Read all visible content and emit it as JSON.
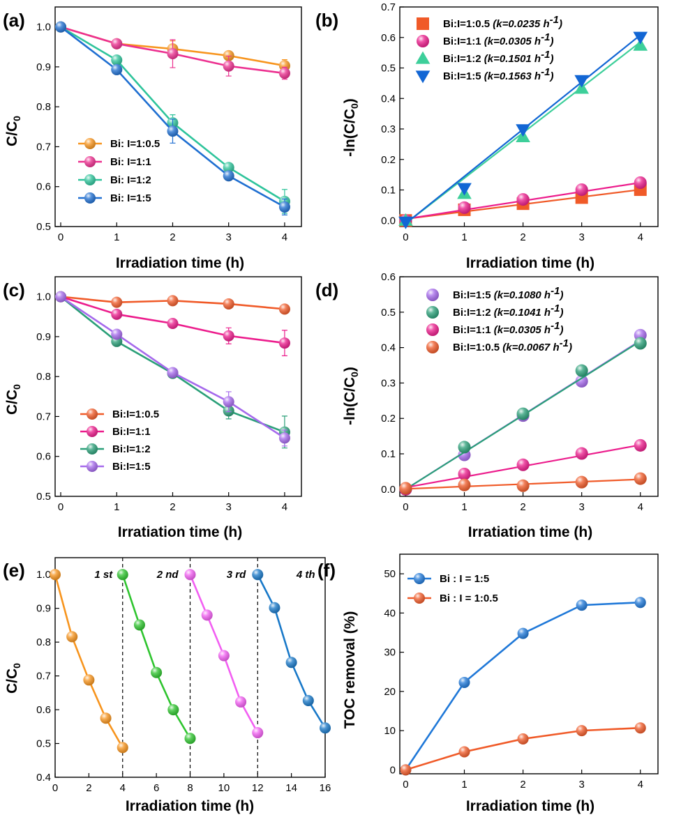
{
  "chart_data": [
    {
      "id": "a",
      "panel_label": "(a)",
      "type": "line",
      "xlabel": "Irradiation time (h)",
      "ylabel": "C/C0",
      "xlim": [
        -0.1,
        4.3
      ],
      "ylim": [
        0.5,
        1.05
      ],
      "xticks": [
        "0",
        "1",
        "2",
        "3",
        "4"
      ],
      "yticks": [
        "0.5",
        "0.6",
        "0.7",
        "0.8",
        "0.9",
        "1.0"
      ],
      "legend_position": "bottom-left",
      "series": [
        {
          "name": "Bi: I=1:0.5",
          "color": "#f7941d",
          "marker": "circle",
          "x": [
            0,
            1,
            2,
            3,
            4
          ],
          "y": [
            1.0,
            0.958,
            0.945,
            0.928,
            0.903
          ],
          "err": [
            0,
            0.01,
            0.02,
            0.01,
            0.015
          ]
        },
        {
          "name": "Bi: I=1:1",
          "color": "#ec2f8f",
          "marker": "circle",
          "x": [
            0,
            1,
            2,
            3,
            4
          ],
          "y": [
            1.0,
            0.958,
            0.933,
            0.902,
            0.884
          ],
          "err": [
            0,
            0.01,
            0.035,
            0.025,
            0.015
          ]
        },
        {
          "name": "Bi: I=1:2",
          "color": "#2ec49b",
          "marker": "circle",
          "x": [
            0,
            1,
            2,
            3,
            4
          ],
          "y": [
            1.0,
            0.917,
            0.76,
            0.648,
            0.563
          ],
          "err": [
            0,
            0.01,
            0.02,
            0.01,
            0.03
          ]
        },
        {
          "name": "Bi: I=1:5",
          "color": "#1f6fd1",
          "marker": "circle",
          "x": [
            0,
            1,
            2,
            3,
            4
          ],
          "y": [
            1.0,
            0.893,
            0.739,
            0.627,
            0.549
          ],
          "err": [
            0,
            0.01,
            0.03,
            0.01,
            0.02
          ]
        }
      ]
    },
    {
      "id": "b",
      "panel_label": "(b)",
      "type": "scatter",
      "xlabel": "Irradiation time (h)",
      "ylabel": "-ln(C/C0)",
      "xlim": [
        -0.1,
        4.3
      ],
      "ylim": [
        -0.02,
        0.7
      ],
      "xticks": [
        "0",
        "1",
        "2",
        "3",
        "4"
      ],
      "yticks": [
        "0.0",
        "0.1",
        "0.2",
        "0.3",
        "0.4",
        "0.5",
        "0.6",
        "0.7"
      ],
      "legend_position": "top-left",
      "series": [
        {
          "name": "Bi:I=1:0.5",
          "k": "(k=0.0235 h",
          "k_sup": "-1",
          "k_close": ")",
          "color": "#f05a28",
          "marker": "square",
          "x": [
            0,
            1,
            2,
            3,
            4
          ],
          "y": [
            0,
            0.035,
            0.055,
            0.075,
            0.101
          ],
          "fit": [
            0.005,
            0.101
          ]
        },
        {
          "name": "Bi:I=1:1",
          "k": "(k=0.0305 h",
          "k_sup": "-1",
          "k_close": ")",
          "color": "#ec1c8c",
          "marker": "circle",
          "x": [
            0,
            1,
            2,
            3,
            4
          ],
          "y": [
            0,
            0.042,
            0.069,
            0.101,
            0.124
          ],
          "fit": [
            0.005,
            0.124
          ]
        },
        {
          "name": "Bi:I=1:2",
          "k": "(k=0.1501 h",
          "k_sup": "-1",
          "k_close": ")",
          "color": "#3dcf9a",
          "marker": "triangle-up",
          "x": [
            0,
            1,
            2,
            3,
            4
          ],
          "y": [
            0,
            0.088,
            0.274,
            0.433,
            0.574
          ],
          "fit": [
            -0.01,
            0.585
          ]
        },
        {
          "name": "Bi:I=1:5",
          "k": "(k=0.1563 h",
          "k_sup": "-1",
          "k_close": ")",
          "color": "#1266d4",
          "marker": "triangle-down",
          "x": [
            0,
            1,
            2,
            3,
            4
          ],
          "y": [
            -0.005,
            0.105,
            0.298,
            0.459,
            0.601
          ],
          "fit": [
            -0.01,
            0.608
          ]
        }
      ]
    },
    {
      "id": "c",
      "panel_label": "(c)",
      "type": "line",
      "xlabel": "Irratiation time (h)",
      "ylabel": "C/C0",
      "xlim": [
        -0.1,
        4.3
      ],
      "ylim": [
        0.5,
        1.05
      ],
      "xticks": [
        "0",
        "1",
        "2",
        "3",
        "4"
      ],
      "yticks": [
        "0.5",
        "0.6",
        "0.7",
        "0.8",
        "0.9",
        "1.0"
      ],
      "legend_position": "bottom-left",
      "series": [
        {
          "name": "Bi:I=1:0.5",
          "color": "#f05a28",
          "marker": "circle",
          "x": [
            0,
            1,
            2,
            3,
            4
          ],
          "y": [
            1.0,
            0.986,
            0.99,
            0.982,
            0.969
          ],
          "err": [
            0,
            0.005,
            0.005,
            0.005,
            0.005
          ]
        },
        {
          "name": "Bi:I=1:1",
          "color": "#ec1c8c",
          "marker": "circle",
          "x": [
            0,
            1,
            2,
            3,
            4
          ],
          "y": [
            1.0,
            0.956,
            0.933,
            0.902,
            0.884
          ],
          "err": [
            0,
            0.01,
            0.01,
            0.02,
            0.032
          ]
        },
        {
          "name": "Bi:I=1:2",
          "color": "#2a9f78",
          "marker": "circle",
          "x": [
            0,
            1,
            2,
            3,
            4
          ],
          "y": [
            1.0,
            0.888,
            0.808,
            0.714,
            0.661
          ],
          "err": [
            0,
            0.01,
            0.01,
            0.02,
            0.04
          ]
        },
        {
          "name": "Bi:I=1:5",
          "color": "#a569ec",
          "marker": "circle",
          "x": [
            0,
            1,
            2,
            3,
            4
          ],
          "y": [
            1.0,
            0.906,
            0.81,
            0.737,
            0.646
          ],
          "err": [
            0,
            0.01,
            0.01,
            0.025,
            0.02
          ]
        }
      ]
    },
    {
      "id": "d",
      "panel_label": "(d)",
      "type": "scatter",
      "xlabel": "Irratiation time (h)",
      "ylabel": "-ln(C/C0)",
      "xlim": [
        -0.1,
        4.3
      ],
      "ylim": [
        -0.02,
        0.6
      ],
      "xticks": [
        "0",
        "1",
        "2",
        "3",
        "4"
      ],
      "yticks": [
        "0.0",
        "0.1",
        "0.2",
        "0.3",
        "0.4",
        "0.5",
        "0.6"
      ],
      "legend_position": "top-left",
      "series": [
        {
          "name": "Bi:I=1:5",
          "k": "(k=0.1080 h",
          "k_sup": "-1",
          "k_close": ")",
          "color": "#a569ec",
          "marker": "circle",
          "x": [
            0,
            1,
            2,
            3,
            4
          ],
          "y": [
            0,
            0.097,
            0.208,
            0.305,
            0.435
          ],
          "fit": [
            0,
            0.42
          ]
        },
        {
          "name": "Bi:I=1:2",
          "k": "(k=0.1041 h",
          "k_sup": "-1",
          "k_close": ")",
          "color": "#2a9f78",
          "marker": "circle",
          "x": [
            0,
            1,
            2,
            3,
            4
          ],
          "y": [
            0,
            0.119,
            0.213,
            0.335,
            0.412
          ],
          "fit": [
            0,
            0.418
          ]
        },
        {
          "name": "Bi:I=1:1",
          "k": "(k=0.0305 h",
          "k_sup": "-1",
          "k_close": ")",
          "color": "#ec1c8c",
          "marker": "circle",
          "x": [
            0,
            1,
            2,
            3,
            4
          ],
          "y": [
            0,
            0.043,
            0.069,
            0.101,
            0.124
          ],
          "fit": [
            0.005,
            0.125
          ]
        },
        {
          "name": "Bi:I=1:0.5",
          "k": "(k=0.0067 h",
          "k_sup": "-1",
          "k_close": ")",
          "color": "#f05a28",
          "marker": "circle",
          "x": [
            0,
            1,
            2,
            3,
            4
          ],
          "y": [
            0.003,
            0.012,
            0.01,
            0.02,
            0.03
          ],
          "fit": [
            0.001,
            0.028
          ]
        }
      ]
    },
    {
      "id": "e",
      "panel_label": "(e)",
      "type": "line",
      "xlabel": "Irradiation time (h)",
      "ylabel": "C/C0",
      "xlim": [
        0,
        16
      ],
      "ylim": [
        0.4,
        1.05
      ],
      "xticks": [
        "0",
        "2",
        "4",
        "6",
        "8",
        "10",
        "12",
        "14",
        "16"
      ],
      "yticks": [
        "0.4",
        "0.5",
        "0.6",
        "0.7",
        "0.8",
        "0.9",
        "1.0"
      ],
      "cycle_boundaries": [
        4,
        8,
        12
      ],
      "annotations": [
        {
          "text": "1 st",
          "x": 3.4,
          "y": 1.0
        },
        {
          "text": "2 nd",
          "x": 7.3,
          "y": 1.0
        },
        {
          "text": "3 rd",
          "x": 11.3,
          "y": 1.0
        },
        {
          "text": "4 th",
          "x": 15.4,
          "y": 1.0
        }
      ],
      "series": [
        {
          "name": "1 st",
          "color": "#f7941d",
          "marker": "circle",
          "x": [
            0,
            1,
            2,
            3,
            4
          ],
          "y": [
            1.0,
            0.816,
            0.688,
            0.575,
            0.488
          ]
        },
        {
          "name": "2 nd",
          "color": "#2ec42e",
          "marker": "circle",
          "x": [
            4,
            5,
            6,
            7,
            8
          ],
          "y": [
            1.0,
            0.851,
            0.71,
            0.6,
            0.515
          ]
        },
        {
          "name": "3 rd",
          "color": "#f25ef2",
          "marker": "circle",
          "x": [
            8,
            9,
            10,
            11,
            12
          ],
          "y": [
            1.0,
            0.88,
            0.76,
            0.623,
            0.532
          ]
        },
        {
          "name": "4 th",
          "color": "#1878c8",
          "marker": "circle",
          "x": [
            12,
            13,
            14,
            15,
            16
          ],
          "y": [
            1.0,
            0.902,
            0.74,
            0.627,
            0.546
          ]
        }
      ]
    },
    {
      "id": "f",
      "panel_label": "(f)",
      "type": "line",
      "xlabel": "Irradiation time (h)",
      "ylabel": "TOC removal (%)",
      "xlim": [
        -0.1,
        4.3
      ],
      "ylim": [
        -1,
        55
      ],
      "xticks": [
        "0",
        "1",
        "2",
        "3",
        "4"
      ],
      "yticks": [
        "0",
        "10",
        "20",
        "30",
        "40",
        "50"
      ],
      "legend_position": "top-left",
      "series": [
        {
          "name": "Bi : I = 1:5",
          "color": "#1f78d8",
          "marker": "circle",
          "x": [
            0,
            1,
            2,
            3,
            4
          ],
          "y": [
            0,
            22.3,
            34.8,
            42.0,
            42.7
          ]
        },
        {
          "name": "Bi : I = 1:0.5",
          "color": "#f05a28",
          "marker": "circle",
          "x": [
            0,
            1,
            2,
            3,
            4
          ],
          "y": [
            0,
            4.6,
            7.9,
            10.0,
            10.7
          ]
        }
      ]
    }
  ]
}
